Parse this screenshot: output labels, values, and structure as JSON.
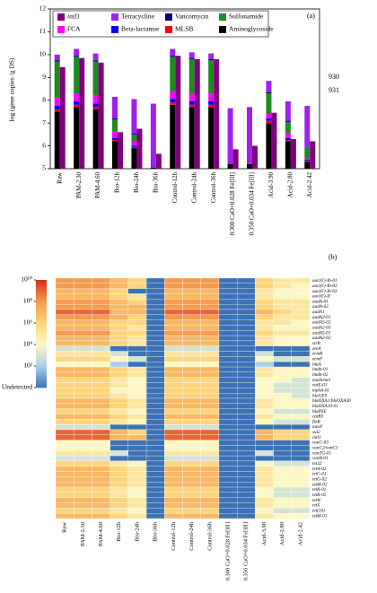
{
  "chart_data": [
    {
      "type": "bar",
      "panel": "(a)",
      "ylabel": "log (gene copies /g DS)",
      "annotations": [
        "930",
        "931"
      ],
      "categories": [
        "Raw",
        "PAM-2.30",
        "PAM-4.60",
        "Bio-12h",
        "Bio-24h",
        "Bio-36h",
        "Control-12h",
        "Control-24h",
        "Control-36h",
        "0.300 CaO+0.028 Fe[III]",
        "0.350 CaO+0.034 Fe[III]",
        "Acid-3.90",
        "Acid-2.80",
        "Acid-2.42"
      ],
      "ylim": [
        5,
        12
      ],
      "yticks": [
        5,
        6,
        7,
        8,
        9,
        10,
        11,
        12
      ],
      "series": [
        {
          "name": "intI1",
          "color": "#800080",
          "values": [
            9.45,
            9.85,
            9.65,
            6.6,
            6.75,
            5.65,
            9.95,
            9.8,
            9.8,
            5.85,
            6.0,
            7.45,
            6.3,
            6.2
          ]
        },
        {
          "name": "Tetracycline",
          "color": "#a020f0",
          "stacked": true,
          "values": [
            0.25,
            0.3,
            0.3,
            0.95,
            1.5,
            2.8,
            0.3,
            0.25,
            0.25,
            2.45,
            2.5,
            0.5,
            0.85,
            1.8
          ]
        },
        {
          "name": "Vancomycin",
          "color": "#000080",
          "stacked": true,
          "values": [
            0.05,
            0.05,
            0.05,
            0.05,
            0.05,
            0,
            0.05,
            0.05,
            0.05,
            0,
            0,
            0.05,
            0.05,
            0
          ]
        },
        {
          "name": "Sulfonamide",
          "color": "#1f8a1f",
          "stacked": true,
          "values": [
            1.6,
            1.6,
            1.5,
            0.5,
            0.3,
            0,
            1.5,
            1.5,
            1.45,
            0,
            0,
            0.9,
            0.5,
            0.5
          ]
        },
        {
          "name": "FCA",
          "color": "#ff00ff",
          "stacked": true,
          "values": [
            0.35,
            0.35,
            0.35,
            0.3,
            0.2,
            0,
            0.35,
            0.35,
            0.35,
            0,
            0,
            0.2,
            0.2,
            0.05
          ]
        },
        {
          "name": "Beta-lactamse",
          "color": "#0000ff",
          "stacked": true,
          "values": [
            0.15,
            0.15,
            0.15,
            0.1,
            0.05,
            0,
            0.15,
            0.15,
            0.15,
            0,
            0,
            0.1,
            0.1,
            0.05
          ]
        },
        {
          "name": "MLSB",
          "color": "#ff0000",
          "stacked": true,
          "values": [
            0.1,
            0.1,
            0.1,
            0.05,
            0.05,
            0,
            0.1,
            0.1,
            0.1,
            0,
            0,
            0.1,
            0.05,
            0.05
          ]
        },
        {
          "name": "Aminoglycoside",
          "color": "#000000",
          "stacked": true,
          "values": [
            2.5,
            2.7,
            2.6,
            1.2,
            0.9,
            0.05,
            2.8,
            2.7,
            2.7,
            0.2,
            0.2,
            2.0,
            1.2,
            0.3
          ]
        }
      ]
    },
    {
      "type": "heatmap",
      "panel": "(b)",
      "columns": [
        "Raw",
        "PAM-2.30",
        "PAM-4.60",
        "Bio-12h",
        "Bio-24h",
        "Bio-36h",
        "Control-12h",
        "Control-24h",
        "Control-36h",
        "0.300 CaO+0.028 Fe[III]",
        "0.350 CaO+0.034 Fe[III]",
        "Acid-3.90",
        "Acid-2.80",
        "Acid-2.42"
      ],
      "rows": [
        "aac(6')-Ib-01",
        "aac(6')-Ib-02",
        "aac(6')-Ib-03",
        "aac(6')-II",
        "aadA-01",
        "aadA-02",
        "aadA1",
        "aadA2-01",
        "aadA5-02",
        "aadA2-03",
        "aadA5-01",
        "aadA2-02",
        "strB",
        "ereA",
        "ermB",
        "ermF",
        "lnuA",
        "lmdb-01",
        "lmdb-02",
        "matA/mel",
        "vatE-01",
        "mphA-01",
        "blaGES",
        "blaOXA1/blaOXA30",
        "blaOXA10-01",
        "blaPSE",
        "catB3",
        "floR",
        "mexF",
        "sul2",
        "intI1",
        "vanC-03",
        "vanC2/vanC3",
        "vanTG-01",
        "vanB-01",
        "tet32",
        "tetA-02",
        "tetC-01",
        "tetG-02",
        "tetM-02",
        "tetR-01",
        "tetR-05",
        "tetW",
        "tetX",
        "tet(34)",
        "tetM-01"
      ],
      "clim": [
        0,
        10
      ],
      "colorscale": [
        "#3d72b4",
        "#a9d0e6",
        "#fdf7c4",
        "#fcd57e",
        "#f59b4c",
        "#d7301f"
      ],
      "cticks": [
        {
          "value": 10,
          "label": "10¹⁰"
        },
        {
          "value": 8,
          "label": "10⁸"
        },
        {
          "value": 6,
          "label": "10⁶"
        },
        {
          "value": 4,
          "label": "10⁴"
        },
        {
          "value": 2,
          "label": "10²"
        },
        {
          "value": 0,
          "label": "Undetected"
        }
      ],
      "values": [
        [
          8,
          8,
          8,
          7,
          6,
          0,
          8,
          8,
          8,
          0,
          0,
          6,
          5,
          5
        ],
        [
          8,
          8,
          8,
          7,
          6,
          0,
          8,
          8,
          8,
          0,
          0,
          6,
          5,
          4
        ],
        [
          7,
          7,
          7,
          6,
          0,
          0,
          7,
          7,
          7,
          0,
          0,
          5,
          4,
          4
        ],
        [
          7,
          7,
          7,
          6,
          5,
          0,
          7,
          7,
          7,
          0,
          0,
          5,
          4,
          4
        ],
        [
          8,
          8,
          8,
          7,
          6,
          0,
          8,
          8,
          8,
          0,
          0,
          6,
          5,
          5
        ],
        [
          8,
          8,
          8,
          7,
          7,
          0,
          8,
          8,
          8,
          0,
          0,
          6,
          5,
          5
        ],
        [
          9,
          9,
          9,
          7,
          7,
          0,
          9,
          9,
          9,
          0,
          0,
          7,
          6,
          5
        ],
        [
          8,
          8,
          8,
          7,
          6,
          0,
          8,
          8,
          8,
          0,
          0,
          6,
          5,
          5
        ],
        [
          7,
          7,
          7,
          6,
          6,
          0,
          7,
          7,
          7,
          0,
          0,
          5,
          5,
          4
        ],
        [
          7,
          7,
          7,
          6,
          5,
          0,
          7,
          7,
          7,
          0,
          0,
          5,
          4,
          4
        ],
        [
          8,
          8,
          8,
          6,
          6,
          0,
          8,
          8,
          8,
          0,
          0,
          6,
          5,
          5
        ],
        [
          7,
          7,
          7,
          6,
          5,
          0,
          7,
          7,
          7,
          0,
          0,
          5,
          4,
          4
        ],
        [
          7,
          7,
          7,
          6,
          5,
          0,
          7,
          7,
          7,
          0,
          0,
          5,
          4,
          4
        ],
        [
          3,
          3,
          3,
          0,
          0,
          0,
          3,
          3,
          3,
          0,
          0,
          0,
          0,
          0
        ],
        [
          5,
          5,
          5,
          3,
          0,
          0,
          5,
          5,
          5,
          0,
          0,
          3,
          0,
          0
        ],
        [
          6,
          6,
          6,
          4,
          3,
          0,
          6,
          6,
          6,
          0,
          0,
          4,
          3,
          3
        ],
        [
          4,
          4,
          4,
          2,
          0,
          0,
          4,
          4,
          4,
          0,
          0,
          2,
          0,
          0
        ],
        [
          7,
          7,
          7,
          6,
          5,
          0,
          7,
          7,
          7,
          0,
          0,
          5,
          4,
          4
        ],
        [
          7,
          7,
          7,
          6,
          5,
          0,
          7,
          7,
          7,
          0,
          0,
          5,
          4,
          4
        ],
        [
          6,
          6,
          6,
          5,
          4,
          0,
          6,
          6,
          6,
          0,
          0,
          4,
          4,
          3
        ],
        [
          6,
          6,
          6,
          5,
          4,
          0,
          6,
          6,
          6,
          0,
          0,
          4,
          3,
          3
        ],
        [
          6,
          6,
          6,
          4,
          4,
          0,
          6,
          6,
          6,
          0,
          0,
          4,
          3,
          3
        ],
        [
          6,
          6,
          6,
          5,
          4,
          0,
          6,
          6,
          6,
          0,
          0,
          4,
          4,
          3
        ],
        [
          7,
          7,
          7,
          6,
          5,
          0,
          7,
          7,
          7,
          0,
          0,
          5,
          4,
          4
        ],
        [
          7,
          7,
          7,
          6,
          5,
          0,
          7,
          7,
          7,
          0,
          0,
          5,
          4,
          4
        ],
        [
          6,
          6,
          6,
          5,
          4,
          0,
          6,
          6,
          6,
          0,
          0,
          4,
          3,
          3
        ],
        [
          7,
          7,
          7,
          6,
          5,
          0,
          7,
          7,
          7,
          0,
          0,
          5,
          4,
          4
        ],
        [
          6,
          6,
          6,
          5,
          4,
          0,
          6,
          6,
          6,
          0,
          0,
          4,
          3,
          3
        ],
        [
          3,
          3,
          3,
          0,
          0,
          0,
          3,
          3,
          3,
          0,
          0,
          0,
          0,
          0
        ],
        [
          9,
          9,
          9,
          7,
          6,
          0,
          9,
          9,
          9,
          0,
          0,
          7,
          6,
          6
        ],
        [
          9,
          9,
          9,
          7,
          7,
          0,
          9,
          9,
          9,
          0,
          0,
          7,
          6,
          6
        ],
        [
          4,
          4,
          4,
          0,
          0,
          0,
          4,
          4,
          4,
          0,
          0,
          0,
          0,
          0
        ],
        [
          4,
          4,
          4,
          0,
          0,
          0,
          4,
          4,
          4,
          0,
          0,
          0,
          0,
          0
        ],
        [
          5,
          5,
          5,
          3,
          0,
          0,
          5,
          5,
          5,
          0,
          0,
          3,
          0,
          0
        ],
        [
          3,
          3,
          3,
          0,
          0,
          0,
          3,
          3,
          3,
          0,
          0,
          0,
          0,
          0
        ],
        [
          6,
          6,
          6,
          5,
          4,
          0,
          6,
          6,
          6,
          0,
          0,
          4,
          3,
          3
        ],
        [
          7,
          7,
          7,
          6,
          5,
          0,
          7,
          7,
          7,
          0,
          0,
          5,
          4,
          4
        ],
        [
          7,
          7,
          7,
          6,
          5,
          0,
          7,
          7,
          7,
          0,
          0,
          5,
          4,
          4
        ],
        [
          7,
          7,
          7,
          6,
          5,
          0,
          7,
          7,
          7,
          0,
          0,
          5,
          4,
          4
        ],
        [
          7,
          7,
          7,
          6,
          5,
          0,
          7,
          7,
          7,
          0,
          0,
          5,
          4,
          4
        ],
        [
          6,
          6,
          6,
          5,
          4,
          0,
          6,
          6,
          6,
          0,
          0,
          4,
          3,
          3
        ],
        [
          6,
          6,
          6,
          5,
          4,
          0,
          6,
          6,
          6,
          0,
          0,
          4,
          3,
          3
        ],
        [
          7,
          7,
          7,
          6,
          5,
          0,
          7,
          7,
          7,
          0,
          0,
          5,
          4,
          4
        ],
        [
          7,
          7,
          7,
          6,
          5,
          0,
          7,
          7,
          7,
          0,
          0,
          5,
          4,
          4
        ],
        [
          6,
          6,
          6,
          5,
          4,
          0,
          6,
          6,
          6,
          0,
          0,
          4,
          3,
          3
        ],
        [
          7,
          7,
          7,
          6,
          5,
          0,
          7,
          7,
          7,
          0,
          0,
          5,
          4,
          4
        ]
      ]
    }
  ]
}
